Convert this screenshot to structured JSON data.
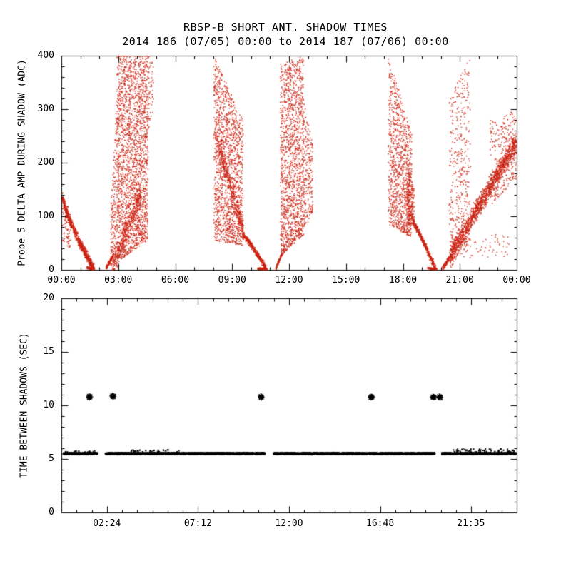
{
  "chart_data": [
    {
      "type": "scatter",
      "title": "RBSP-B SHORT ANT. SHADOW TIMES",
      "subtitle": "2014 186 (07/05) 00:00 to 2014 187 (07/06) 00:00",
      "ylabel": "Probe 5 DELTA AMP DURING SHADOW (ADC)",
      "xlabel": "",
      "xlim": [
        0,
        24
      ],
      "ylim": [
        0,
        400
      ],
      "xticks": [
        0,
        3,
        6,
        9,
        12,
        15,
        18,
        21,
        24
      ],
      "xtick_labels": [
        "00:00",
        "03:00",
        "06:00",
        "09:00",
        "12:00",
        "15:00",
        "18:00",
        "21:00",
        "00:00"
      ],
      "yticks": [
        0,
        100,
        200,
        300,
        400
      ],
      "ytick_labels": [
        "0",
        "100",
        "200",
        "300",
        "400"
      ],
      "x_minor": 1,
      "y_minor": 20,
      "marker": "dot",
      "color": "#cc2211",
      "series": [
        {
          "name": "probe5-delta-amp",
          "segments": [
            {
              "type": "band",
              "t": [
                0.05,
                1.72
              ],
              "v": [
                138,
                2
              ],
              "spread": 11,
              "curve": 0.75,
              "n": 850
            },
            {
              "type": "cloud",
              "t": [
                0.05,
                0.5
              ],
              "vlo": [
                55,
                35
              ],
              "vhi": [
                150,
                100
              ],
              "n": 90
            },
            {
              "type": "band",
              "t": [
                1.35,
                1.75
              ],
              "v": [
                4,
                2
              ],
              "spread": 2.5,
              "n": 120
            },
            {
              "type": "band",
              "t": [
                2.35,
                2.75
              ],
              "v": [
                3,
                28
              ],
              "spread": 5,
              "n": 110
            },
            {
              "type": "cloud",
              "t": [
                2.6,
                3.05
              ],
              "vlo": [
                5,
                30
              ],
              "vhi": [
                120,
                400
              ],
              "n": 260
            },
            {
              "type": "cloud",
              "t": [
                2.95,
                4.55
              ],
              "vlo": [
                15,
                55
              ],
              "vhi": [
                400,
                400
              ],
              "n": 2100,
              "clump": 26
            },
            {
              "type": "band",
              "t": [
                2.7,
                4.2
              ],
              "v": [
                8,
                140
              ],
              "spread": 28,
              "n": 420
            },
            {
              "type": "cloud",
              "t": [
                4.5,
                4.85
              ],
              "vlo": [
                240,
                300
              ],
              "vhi": [
                400,
                400
              ],
              "n": 70
            },
            {
              "type": "cloud",
              "t": [
                8.05,
                9.55
              ],
              "vlo": [
                55,
                45
              ],
              "vhi": [
                400,
                280
              ],
              "n": 1500,
              "clump": 22
            },
            {
              "type": "band",
              "t": [
                8.1,
                9.6
              ],
              "v": [
                255,
                70
              ],
              "spread": 26,
              "n": 380
            },
            {
              "type": "band",
              "t": [
                9.55,
                10.8
              ],
              "v": [
                66,
                2
              ],
              "spread": 7,
              "curve": 1.15,
              "n": 430
            },
            {
              "type": "band",
              "t": [
                10.35,
                10.85
              ],
              "v": [
                3,
                1
              ],
              "spread": 2,
              "n": 110
            },
            {
              "type": "band",
              "t": [
                11.3,
                11.62
              ],
              "v": [
                2,
                30
              ],
              "spread": 5,
              "n": 110
            },
            {
              "type": "cloud",
              "t": [
                11.55,
                12.75
              ],
              "vlo": [
                25,
                65
              ],
              "vhi": [
                385,
                400
              ],
              "n": 1400,
              "clump": 20
            },
            {
              "type": "cloud",
              "t": [
                12.7,
                13.25
              ],
              "vlo": [
                70,
                105
              ],
              "vhi": [
                330,
                235
              ],
              "n": 260
            },
            {
              "type": "cloud",
              "t": [
                17.25,
                18.45
              ],
              "vlo": [
                85,
                60
              ],
              "vhi": [
                400,
                255
              ],
              "n": 1050,
              "clump": 18
            },
            {
              "type": "cloud",
              "t": [
                18.2,
                18.6
              ],
              "vlo": [
                85,
                85
              ],
              "vhi": [
                195,
                150
              ],
              "n": 230
            },
            {
              "type": "band",
              "t": [
                18.5,
                19.72
              ],
              "v": [
                92,
                2
              ],
              "spread": 8,
              "curve": 1.1,
              "n": 420
            },
            {
              "type": "band",
              "t": [
                19.3,
                19.78
              ],
              "v": [
                3,
                1
              ],
              "spread": 2,
              "n": 100
            },
            {
              "type": "band",
              "t": [
                20.08,
                20.55
              ],
              "v": [
                2,
                28
              ],
              "spread": 5,
              "n": 140
            },
            {
              "type": "cloud",
              "t": [
                20.45,
                21.55
              ],
              "vlo": [
                10,
                40
              ],
              "vhi": [
                320,
                400
              ],
              "n": 420,
              "clump": 14
            },
            {
              "type": "band",
              "t": [
                20.5,
                23.98
              ],
              "v": [
                28,
                238
              ],
              "spread": 24,
              "n": 1500
            },
            {
              "type": "cloud",
              "t": [
                21.2,
                23.6
              ],
              "vlo": [
                22,
                25
              ],
              "vhi": [
                60,
                70
              ],
              "n": 55
            },
            {
              "type": "cloud",
              "t": [
                22.6,
                23.98
              ],
              "vlo": [
                120,
                170
              ],
              "vhi": [
                280,
                300
              ],
              "n": 300
            }
          ]
        }
      ]
    },
    {
      "type": "scatter",
      "title": "",
      "ylabel": "TIME BETWEEN SHADOWS (SEC)",
      "xlabel": "",
      "xlim": [
        0,
        24
      ],
      "ylim": [
        0,
        20
      ],
      "xticks": [
        2.4,
        7.2,
        12.0,
        16.8,
        21.5833
      ],
      "xtick_labels": [
        "02:24",
        "07:12",
        "12:00",
        "16:48",
        "21:35"
      ],
      "yticks": [
        0,
        5,
        10,
        15,
        20
      ],
      "ytick_labels": [
        "0",
        "5",
        "10",
        "15",
        "20"
      ],
      "x_minor": 0.8,
      "y_minor": 1,
      "marker": "asterisk",
      "color": "#000000",
      "band_value": 5.5,
      "band_jitter": 0.09,
      "band_runs": [
        [
          0.1,
          1.9
        ],
        [
          2.32,
          10.72
        ],
        [
          11.18,
          19.68
        ],
        [
          20.05,
          23.95
        ]
      ],
      "fuzz": [
        {
          "t": [
            3.6,
            6.2
          ],
          "v": [
            5.65,
            5.85
          ],
          "n": 30
        },
        {
          "t": [
            20.6,
            23.9
          ],
          "v": [
            5.65,
            5.95
          ],
          "n": 60
        },
        {
          "t": [
            0.2,
            1.8
          ],
          "v": [
            5.6,
            5.75
          ],
          "n": 15
        }
      ],
      "star_value": 10.8,
      "star_clusters": [
        1.5,
        2.72,
        10.55,
        16.35,
        19.62,
        19.92
      ]
    }
  ]
}
